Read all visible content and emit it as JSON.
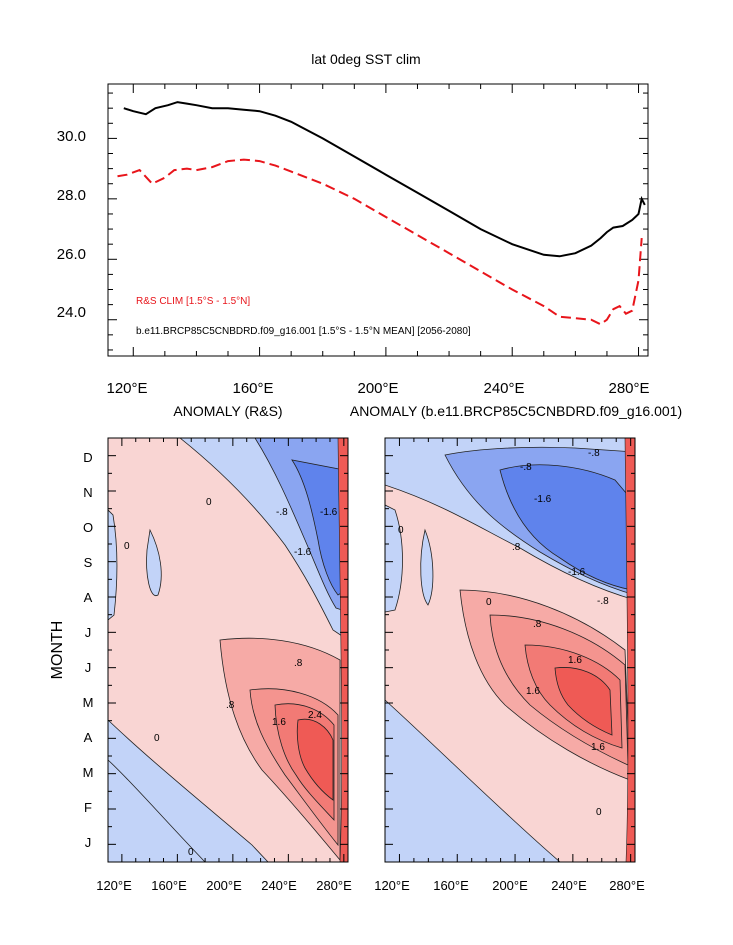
{
  "colors": {
    "black_line": "#000000",
    "red_line": "#e8151b",
    "neg_strong": "#5f83ec",
    "neg_mid": "#8aa5f1",
    "neg_light": "#c2d3f8",
    "pos_light": "#f9d5d3",
    "pos_mid": "#f6aaa6",
    "pos_strong": "#ef5a55"
  },
  "top_panel": {
    "title": "lat 0deg SST clim",
    "y_tick_labels": [
      "24.0",
      "26.0",
      "28.0",
      "30.0"
    ],
    "x_tick_labels": [
      "120°E",
      "160°E",
      "200°E",
      "240°E",
      "280°E"
    ],
    "legend": {
      "red_label": "R&S CLIM [1.5°S - 1.5°N]",
      "black_label": "b.e11.BRCP85C5CNBDRD.f09_g16.001 [1.5°S - 1.5°N MEAN] [2056-2080]"
    }
  },
  "bottom_left": {
    "title": "ANOMALY (R&S)",
    "y_label": "MONTH",
    "month_labels": [
      "D",
      "N",
      "O",
      "S",
      "A",
      "J",
      "J",
      "M",
      "A",
      "M",
      "F",
      "J"
    ],
    "x_tick_labels": [
      "120°E",
      "160°E",
      "200°E",
      "240°E",
      "280°E"
    ]
  },
  "bottom_right": {
    "title": "ANOMALY (b.e11.BRCP85C5CNBDRD.f09_g16.001)",
    "x_tick_labels": [
      "120°E",
      "160°E",
      "200°E",
      "240°E",
      "280°E"
    ]
  },
  "chart_data": [
    {
      "type": "line",
      "title": "lat 0deg SST clim",
      "xlabel": "",
      "ylabel": "",
      "xlim": [
        112,
        283
      ],
      "ylim": [
        22.8,
        31.8
      ],
      "x_ticks": [
        120,
        160,
        200,
        240,
        280
      ],
      "y_ticks": [
        24.0,
        26.0,
        28.0,
        30.0
      ],
      "series": [
        {
          "name": "b.e11.BRCP85C5CNBDRD.f09_g16.001 [1.5°S - 1.5°N MEAN] [2056-2080]",
          "color": "#000000",
          "style": "solid",
          "x": [
            117,
            120,
            124,
            127,
            131,
            134,
            137,
            140,
            145,
            150,
            155,
            160,
            165,
            170,
            180,
            190,
            200,
            210,
            220,
            230,
            240,
            250,
            255,
            260,
            265,
            268,
            270,
            272,
            275,
            278,
            280,
            281,
            282
          ],
          "y": [
            31.0,
            30.9,
            30.8,
            31.0,
            31.1,
            31.2,
            31.15,
            31.1,
            31.0,
            31.0,
            30.95,
            30.9,
            30.75,
            30.55,
            30.0,
            29.4,
            28.8,
            28.2,
            27.6,
            27.0,
            26.5,
            26.15,
            26.1,
            26.2,
            26.45,
            26.7,
            26.9,
            27.05,
            27.1,
            27.3,
            27.5,
            28.0,
            27.8
          ]
        },
        {
          "name": "R&S CLIM [1.5°S - 1.5°N]",
          "color": "#e8151b",
          "style": "dashed",
          "x": [
            115,
            118,
            122,
            126,
            130,
            133,
            137,
            140,
            145,
            150,
            155,
            160,
            165,
            170,
            180,
            190,
            200,
            210,
            220,
            230,
            240,
            250,
            255,
            260,
            265,
            268,
            270,
            272,
            274,
            276,
            278,
            280,
            281
          ],
          "y": [
            28.75,
            28.8,
            28.95,
            28.5,
            28.7,
            28.95,
            29.0,
            28.95,
            29.05,
            29.25,
            29.3,
            29.25,
            29.1,
            28.9,
            28.5,
            28.0,
            27.4,
            26.8,
            26.2,
            25.6,
            25.0,
            24.45,
            24.1,
            24.05,
            24.0,
            23.85,
            24.0,
            24.35,
            24.45,
            24.2,
            24.3,
            25.3,
            26.7
          ]
        }
      ],
      "legend_placement": "bottom-left",
      "grid": false
    },
    {
      "type": "heatmap",
      "title": "ANOMALY (R&S)",
      "ylabel": "MONTH",
      "xlabel": "",
      "xlim": [
        110,
        283
      ],
      "x_ticks": [
        120,
        160,
        200,
        240,
        280
      ],
      "y_categories": [
        "J",
        "F",
        "M",
        "A",
        "M",
        "J",
        "J",
        "A",
        "S",
        "O",
        "N",
        "D"
      ],
      "contour_levels": [
        -1.6,
        -0.8,
        0,
        0.8,
        1.6,
        2.4
      ],
      "annotations": [
        "-.8",
        ".8",
        "-1.6",
        "1.6",
        "2.4",
        "0"
      ]
    },
    {
      "type": "heatmap",
      "title": "ANOMALY (b.e11.BRCP85C5CNBDRD.f09_g16.001)",
      "xlabel": "",
      "xlim": [
        110,
        283
      ],
      "x_ticks": [
        120,
        160,
        200,
        240,
        280
      ],
      "y_categories": [
        "J",
        "F",
        "M",
        "A",
        "M",
        "J",
        "J",
        "A",
        "S",
        "O",
        "N",
        "D"
      ],
      "contour_levels": [
        -1.6,
        -0.8,
        0,
        0.8,
        1.6
      ],
      "annotations": [
        "-.8",
        ".8",
        "-1.6",
        "1.6",
        "0"
      ]
    }
  ]
}
